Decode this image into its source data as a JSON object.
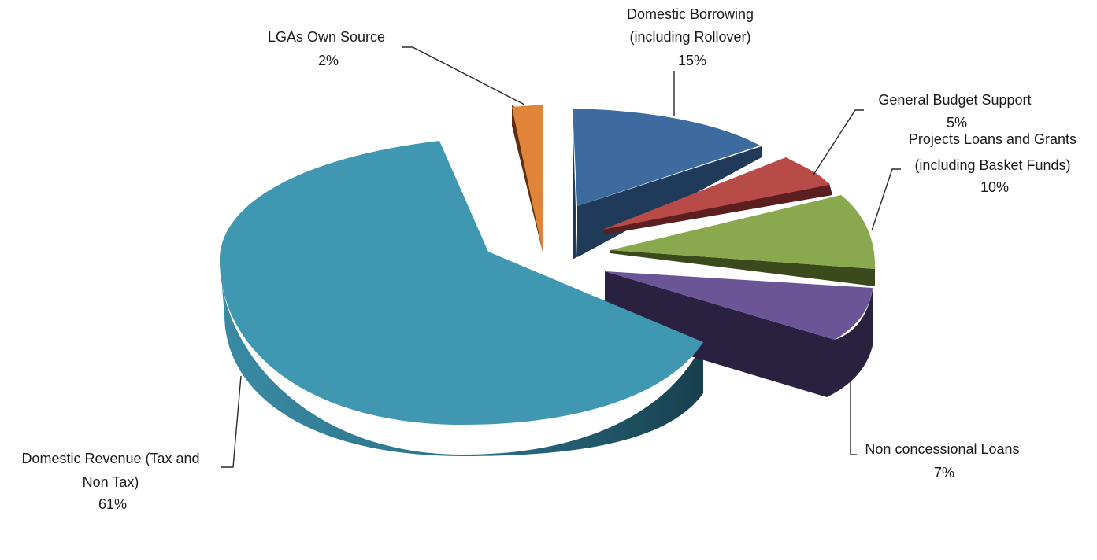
{
  "chart_data": {
    "type": "pie",
    "title": "",
    "style": "3d-exploded",
    "slices": [
      {
        "name_lines": [
          "Domestic Borrowing",
          "(including Rollover)"
        ],
        "value": 15,
        "label": "15%",
        "top": "#3d6ba0",
        "side": "#203a5a"
      },
      {
        "name_lines": [
          "General Budget Support"
        ],
        "value": 5,
        "label": "5%",
        "top": "#b84a47",
        "side": "#5a1f1e"
      },
      {
        "name_lines": [
          "Projects Loans and Grants",
          "(including Basket Funds)"
        ],
        "value": 10,
        "label": "10%",
        "top": "#8aa84e",
        "side": "#3b4a1d"
      },
      {
        "name_lines": [
          "Non concessional Loans"
        ],
        "value": 7,
        "label": "7%",
        "top": "#6b5596",
        "side": "#2a2140"
      },
      {
        "name_lines": [
          "Domestic Revenue (Tax and",
          "Non Tax)"
        ],
        "value": 61,
        "label": "61%",
        "top": "#4097b1",
        "side": "#2a6f86"
      },
      {
        "name_lines": [
          "LGAs Own Source"
        ],
        "value": 2,
        "label": "2%",
        "top": "#e0843a",
        "side": "#5e2e12"
      }
    ]
  }
}
